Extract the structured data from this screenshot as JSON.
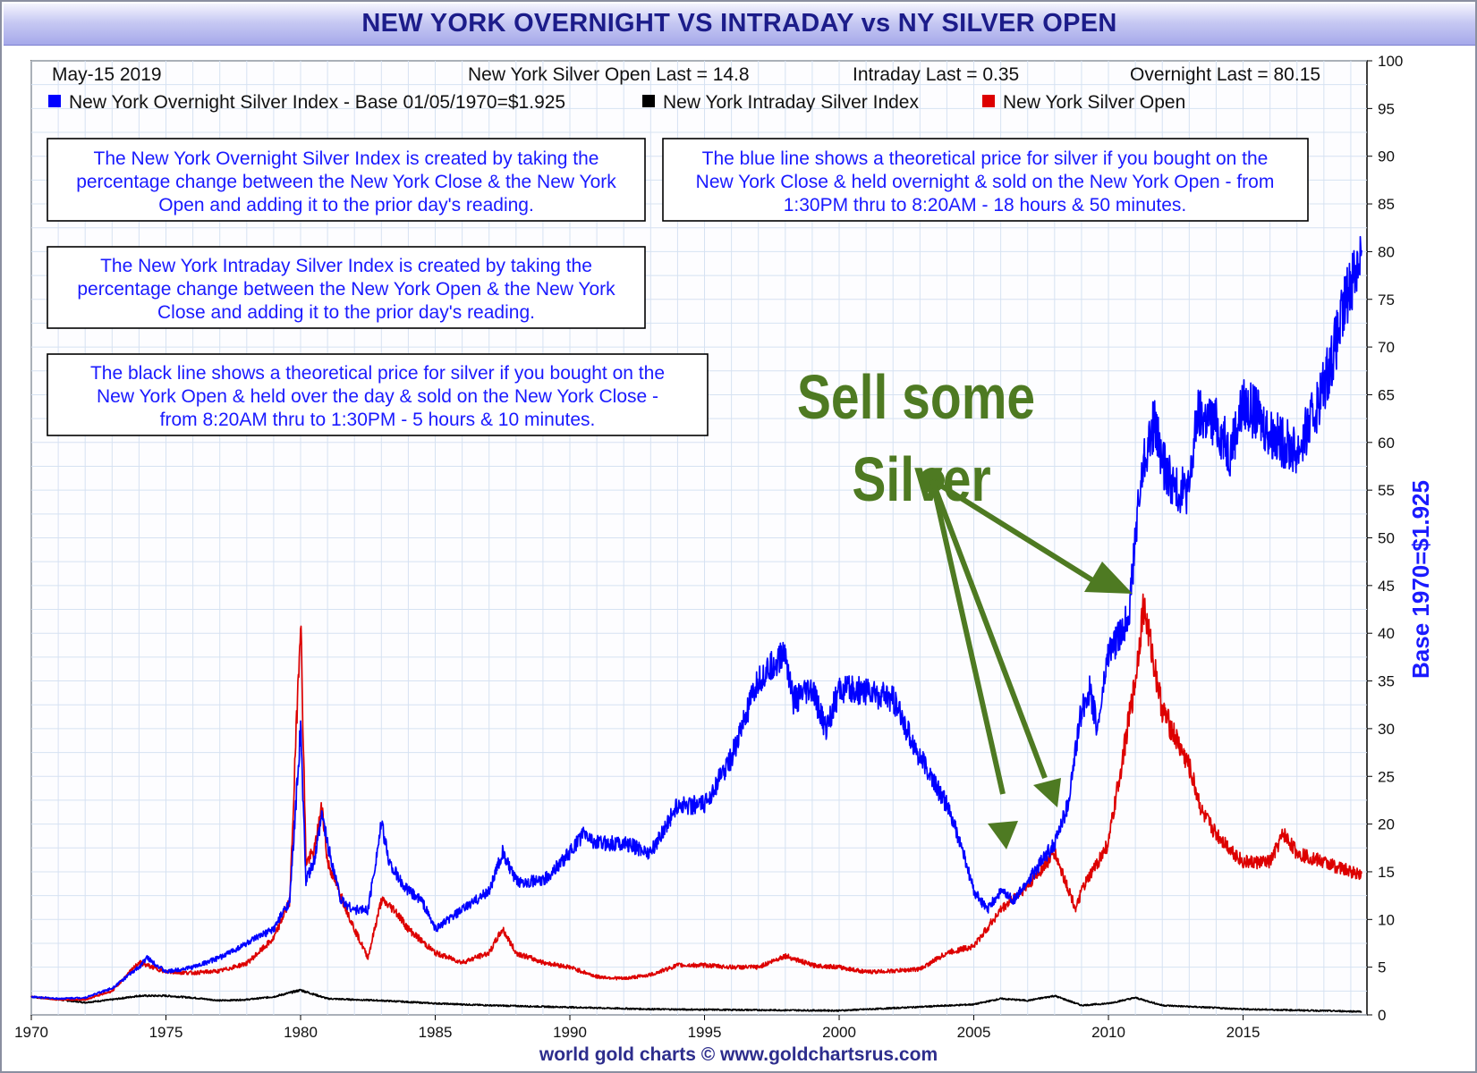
{
  "title": "NEW YORK OVERNIGHT VS INTRADAY vs NY SILVER OPEN",
  "footer": "world gold charts © www.goldchartsrus.com",
  "header": {
    "date": "May-15  2019",
    "silver_open_last": "New York Silver Open Last = 14.8",
    "intraday_last": "Intraday Last = 0.35",
    "overnight_last": "Overnight Last = 80.15"
  },
  "legend": [
    {
      "label": "New York Overnight Silver Index - Base 01/05/1970=$1.925",
      "color": "#0000ff"
    },
    {
      "label": "New York Intraday Silver Index",
      "color": "#000000"
    },
    {
      "label": "New York Silver Open",
      "color": "#dd0000"
    }
  ],
  "notes": [
    {
      "lines": [
        "The New York Overnight Silver Index is created by taking the",
        "percentage change between the New York Close & the New York",
        "Open and adding it to the prior day's reading."
      ]
    },
    {
      "lines": [
        "The blue line shows a theoretical price for silver if you bought on the",
        "New York Close & held overnight & sold on the New York Open - from",
        "1:30PM thru to 8:20AM - 18 hours & 50 minutes."
      ]
    },
    {
      "lines": [
        "The New York Intraday Silver Index is created by taking the",
        "percentage change between the New York Open & the New York",
        "Close and adding it to the prior day's reading."
      ]
    },
    {
      "lines": [
        "The black line shows a theoretical price for silver if you bought on the",
        "New York Open & held over the day & sold on the New York Close -",
        "from 8:20AM thru to 1:30PM - 5 hours & 10 minutes."
      ]
    }
  ],
  "annotation": {
    "line1": "Sell some",
    "line2": "Silver",
    "color": "#4e7a22"
  },
  "chart_data": {
    "type": "line",
    "title": "NEW YORK OVERNIGHT VS INTRADAY vs NY SILVER OPEN",
    "ylabel": "Base 1970=$1.925",
    "xlabel": "",
    "xlim": [
      1970,
      2019.6
    ],
    "ylim": [
      0,
      100
    ],
    "x_ticks": [
      1970,
      1975,
      1980,
      1985,
      1990,
      1995,
      2000,
      2005,
      2010,
      2015
    ],
    "y_ticks": [
      0,
      5,
      10,
      15,
      20,
      25,
      30,
      35,
      40,
      45,
      50,
      55,
      60,
      65,
      70,
      75,
      80,
      85,
      90,
      95,
      100
    ],
    "grid": true,
    "legend_position": "top-left",
    "series": [
      {
        "name": "New York Overnight Silver Index - Base 01/05/1970=$1.925",
        "color": "#0000ff",
        "points": [
          [
            1970,
            1.9
          ],
          [
            1971,
            1.7
          ],
          [
            1972,
            1.8
          ],
          [
            1973,
            2.8
          ],
          [
            1974,
            5
          ],
          [
            1974.3,
            6
          ],
          [
            1975,
            4.5
          ],
          [
            1976,
            5
          ],
          [
            1977,
            6
          ],
          [
            1978,
            7.5
          ],
          [
            1979,
            9
          ],
          [
            1979.6,
            12
          ],
          [
            1980,
            30
          ],
          [
            1980.2,
            14
          ],
          [
            1980.5,
            16
          ],
          [
            1980.8,
            21
          ],
          [
            1981,
            18
          ],
          [
            1981.5,
            12
          ],
          [
            1982,
            11
          ],
          [
            1982.5,
            11
          ],
          [
            1983,
            20
          ],
          [
            1983.3,
            16
          ],
          [
            1983.7,
            14
          ],
          [
            1984,
            13
          ],
          [
            1984.5,
            12
          ],
          [
            1985,
            9
          ],
          [
            1986,
            11
          ],
          [
            1987,
            13
          ],
          [
            1987.5,
            17
          ],
          [
            1988,
            14
          ],
          [
            1989,
            14
          ],
          [
            1990,
            17
          ],
          [
            1990.5,
            19
          ],
          [
            1991,
            18
          ],
          [
            1992,
            18
          ],
          [
            1993,
            17
          ],
          [
            1994,
            22
          ],
          [
            1995,
            22
          ],
          [
            1996,
            27
          ],
          [
            1997,
            35
          ],
          [
            1998,
            38
          ],
          [
            1998.3,
            33
          ],
          [
            1999,
            34
          ],
          [
            1999.5,
            30
          ],
          [
            2000,
            34
          ],
          [
            2001,
            34
          ],
          [
            2002,
            33
          ],
          [
            2003,
            27
          ],
          [
            2004,
            22
          ],
          [
            2004.5,
            18
          ],
          [
            2005,
            13
          ],
          [
            2005.5,
            11
          ],
          [
            2006,
            13
          ],
          [
            2006.5,
            12
          ],
          [
            2007,
            14
          ],
          [
            2008,
            18
          ],
          [
            2008.5,
            22
          ],
          [
            2009,
            32
          ],
          [
            2009.3,
            34
          ],
          [
            2009.6,
            30
          ],
          [
            2010,
            38
          ],
          [
            2010.5,
            40
          ],
          [
            2010.8,
            43
          ],
          [
            2011,
            50
          ],
          [
            2011.3,
            58
          ],
          [
            2011.7,
            62
          ],
          [
            2012,
            58
          ],
          [
            2012.5,
            55
          ],
          [
            2013,
            55
          ],
          [
            2013.3,
            63
          ],
          [
            2014,
            62
          ],
          [
            2014.5,
            59
          ],
          [
            2015,
            64
          ],
          [
            2015.5,
            63
          ],
          [
            2016,
            61
          ],
          [
            2016.5,
            60
          ],
          [
            2017,
            59
          ],
          [
            2017.5,
            62
          ],
          [
            2018,
            66
          ],
          [
            2018.5,
            71
          ],
          [
            2019,
            77
          ],
          [
            2019.4,
            80.15
          ]
        ]
      },
      {
        "name": "New York Intraday Silver Index",
        "color": "#000000",
        "points": [
          [
            1970,
            1.9
          ],
          [
            1972,
            1.3
          ],
          [
            1973,
            1.6
          ],
          [
            1974,
            2.0
          ],
          [
            1975,
            2.0
          ],
          [
            1976,
            1.8
          ],
          [
            1977,
            1.5
          ],
          [
            1978,
            1.6
          ],
          [
            1979,
            1.9
          ],
          [
            1980,
            2.6
          ],
          [
            1981,
            1.7
          ],
          [
            1983,
            1.5
          ],
          [
            1985,
            1.2
          ],
          [
            1987,
            1.0
          ],
          [
            1990,
            0.8
          ],
          [
            1993,
            0.6
          ],
          [
            1995,
            0.55
          ],
          [
            2000,
            0.45
          ],
          [
            2005,
            1.1
          ],
          [
            2006,
            1.7
          ],
          [
            2007,
            1.5
          ],
          [
            2008,
            2.0
          ],
          [
            2009,
            1.0
          ],
          [
            2010,
            1.2
          ],
          [
            2011,
            1.8
          ],
          [
            2012,
            1.0
          ],
          [
            2015,
            0.6
          ],
          [
            2019.4,
            0.35
          ]
        ]
      },
      {
        "name": "New York Silver Open",
        "color": "#dd0000",
        "points": [
          [
            1970,
            1.9
          ],
          [
            1971,
            1.6
          ],
          [
            1972,
            1.6
          ],
          [
            1973,
            2.5
          ],
          [
            1974,
            5.5
          ],
          [
            1975,
            4.5
          ],
          [
            1976,
            4.4
          ],
          [
            1977,
            4.6
          ],
          [
            1978,
            5.4
          ],
          [
            1979,
            8
          ],
          [
            1979.6,
            12
          ],
          [
            1980,
            42
          ],
          [
            1980.2,
            16
          ],
          [
            1980.5,
            17
          ],
          [
            1980.8,
            22
          ],
          [
            1981,
            16
          ],
          [
            1982,
            9
          ],
          [
            1982.5,
            6
          ],
          [
            1983,
            12
          ],
          [
            1983.5,
            11
          ],
          [
            1984,
            9
          ],
          [
            1985,
            6.5
          ],
          [
            1986,
            5.5
          ],
          [
            1987,
            6.5
          ],
          [
            1987.5,
            9
          ],
          [
            1988,
            6.5
          ],
          [
            1989,
            5.5
          ],
          [
            1990,
            5
          ],
          [
            1991,
            4
          ],
          [
            1992,
            3.8
          ],
          [
            1993,
            4.2
          ],
          [
            1994,
            5.2
          ],
          [
            1995,
            5.2
          ],
          [
            1996,
            5
          ],
          [
            1997,
            5
          ],
          [
            1998,
            6.2
          ],
          [
            1999,
            5.2
          ],
          [
            2000,
            5
          ],
          [
            2001,
            4.5
          ],
          [
            2002,
            4.6
          ],
          [
            2003,
            4.8
          ],
          [
            2004,
            6.5
          ],
          [
            2005,
            7.2
          ],
          [
            2006,
            11
          ],
          [
            2007,
            13.5
          ],
          [
            2008,
            17
          ],
          [
            2008.8,
            11
          ],
          [
            2009,
            13
          ],
          [
            2010,
            18
          ],
          [
            2011,
            35
          ],
          [
            2011.3,
            43
          ],
          [
            2012,
            32
          ],
          [
            2013,
            26
          ],
          [
            2013.5,
            21
          ],
          [
            2014,
            19
          ],
          [
            2015,
            16
          ],
          [
            2016,
            16
          ],
          [
            2016.5,
            19
          ],
          [
            2017,
            17
          ],
          [
            2018,
            16
          ],
          [
            2019,
            15
          ],
          [
            2019.4,
            14.8
          ]
        ]
      }
    ]
  }
}
